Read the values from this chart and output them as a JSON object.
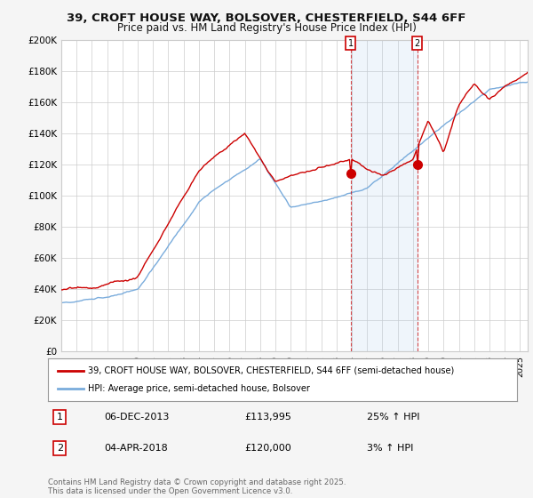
{
  "title1": "39, CROFT HOUSE WAY, BOLSOVER, CHESTERFIELD, S44 6FF",
  "title2": "Price paid vs. HM Land Registry's House Price Index (HPI)",
  "legend1": "39, CROFT HOUSE WAY, BOLSOVER, CHESTERFIELD, S44 6FF (semi-detached house)",
  "legend2": "HPI: Average price, semi-detached house, Bolsover",
  "transaction1_date": "06-DEC-2013",
  "transaction1_price": "£113,995",
  "transaction1_hpi": "25% ↑ HPI",
  "transaction2_date": "04-APR-2018",
  "transaction2_price": "£120,000",
  "transaction2_hpi": "3% ↑ HPI",
  "footer": "Contains HM Land Registry data © Crown copyright and database right 2025.\nThis data is licensed under the Open Government Licence v3.0.",
  "price_color": "#cc0000",
  "hpi_color": "#7aacdc",
  "span_color": "#ddeeff",
  "marker1_x": 2013.92,
  "marker2_x": 2018.27,
  "marker1_y": 113995,
  "marker2_y": 120000,
  "ylim_min": 0,
  "ylim_max": 200000,
  "xlim_min": 1995,
  "xlim_max": 2025.5,
  "yticks": [
    0,
    20000,
    40000,
    60000,
    80000,
    100000,
    120000,
    140000,
    160000,
    180000,
    200000
  ],
  "ytick_labels": [
    "£0",
    "£20K",
    "£40K",
    "£60K",
    "£80K",
    "£100K",
    "£120K",
    "£140K",
    "£160K",
    "£180K",
    "£200K"
  ],
  "xticks": [
    1995,
    1996,
    1997,
    1998,
    1999,
    2000,
    2001,
    2002,
    2003,
    2004,
    2005,
    2006,
    2007,
    2008,
    2009,
    2010,
    2011,
    2012,
    2013,
    2014,
    2015,
    2016,
    2017,
    2018,
    2019,
    2020,
    2021,
    2022,
    2023,
    2024,
    2025
  ],
  "background_color": "#f5f5f5",
  "plot_bg_color": "#ffffff",
  "grid_color": "#cccccc"
}
